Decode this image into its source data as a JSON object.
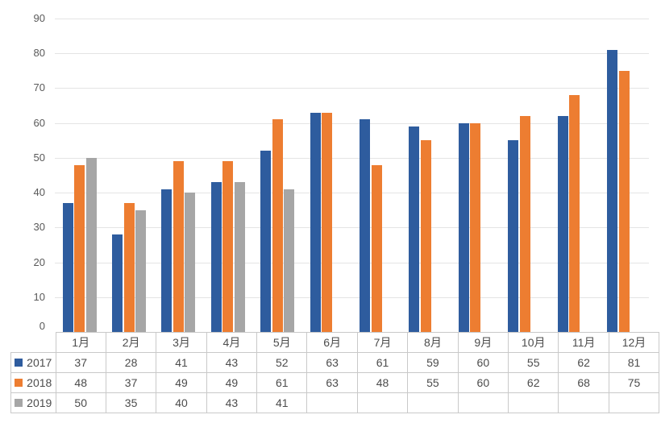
{
  "chart_data": {
    "type": "bar",
    "title": "",
    "xlabel": "",
    "ylabel": "",
    "categories": [
      "1月",
      "2月",
      "3月",
      "4月",
      "5月",
      "6月",
      "7月",
      "8月",
      "9月",
      "10月",
      "11月",
      "12月"
    ],
    "series": [
      {
        "name": "2017",
        "color": "#2e5c9e",
        "values": [
          37,
          28,
          41,
          43,
          52,
          63,
          61,
          59,
          60,
          55,
          62,
          81
        ]
      },
      {
        "name": "2018",
        "color": "#ed7d31",
        "values": [
          48,
          37,
          49,
          49,
          61,
          63,
          48,
          55,
          60,
          62,
          68,
          75
        ]
      },
      {
        "name": "2019",
        "color": "#a6a6a6",
        "values": [
          50,
          35,
          40,
          43,
          41,
          null,
          null,
          null,
          null,
          null,
          null,
          null
        ]
      }
    ],
    "y_axis": {
      "min": 0,
      "max": 90,
      "step": 10,
      "tick_labels": [
        "0",
        "10",
        "20",
        "30",
        "40",
        "50",
        "60",
        "70",
        "80",
        "90"
      ]
    },
    "grid": true,
    "legend_position": "data-table-left",
    "data_table_shown": true
  },
  "colors": {
    "series_2017": "#2e5c9e",
    "series_2018": "#ed7d31",
    "series_2019": "#a6a6a6",
    "gridline": "#e4e4e4",
    "table_border": "#c9c9c9",
    "text": "#4c4c4c",
    "axis_text": "#595959",
    "background": "#ffffff"
  }
}
